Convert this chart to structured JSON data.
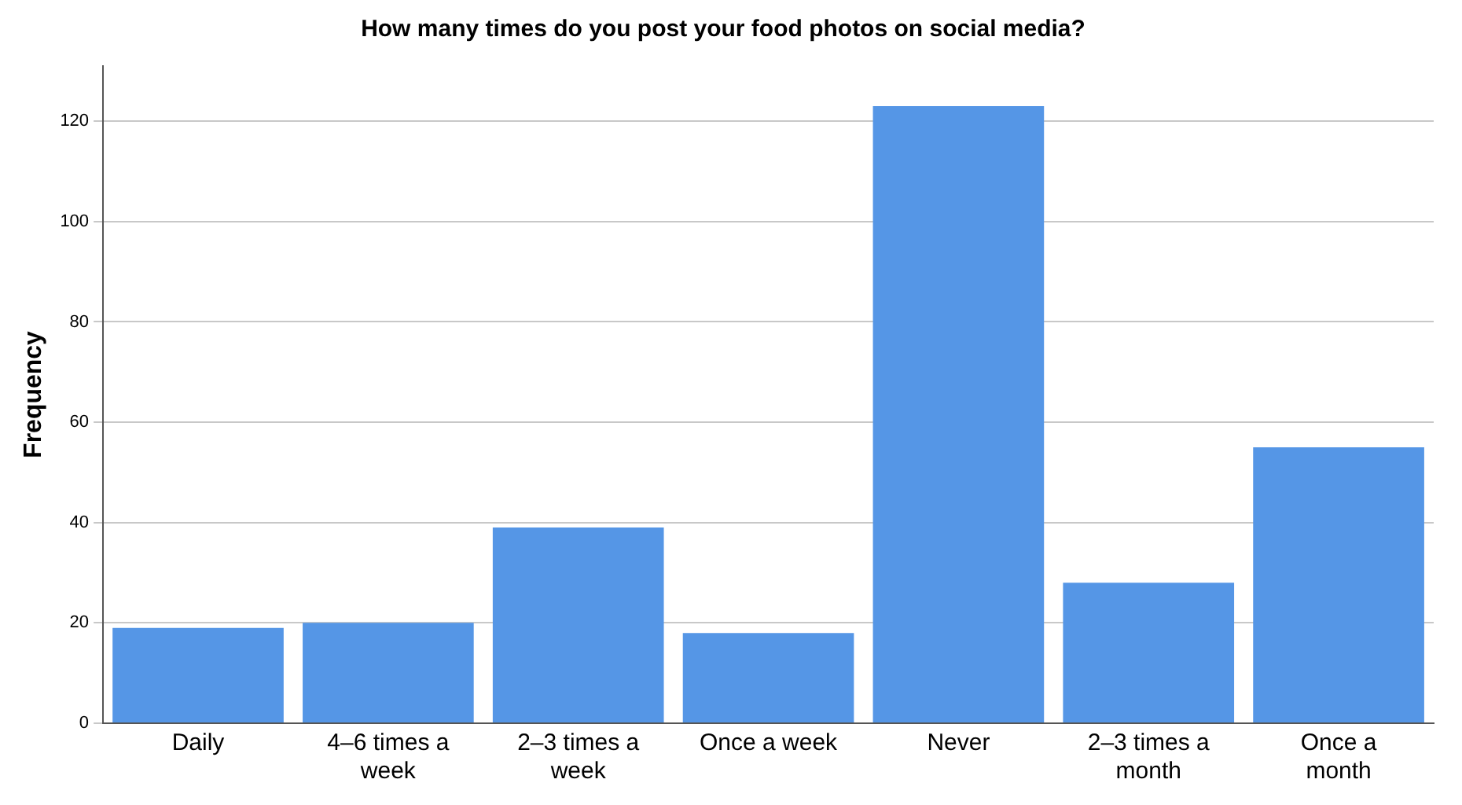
{
  "chart_data": {
    "type": "bar",
    "title": "How many times do you post your food photos on social media?",
    "ylabel": "Frequency",
    "categories": [
      "Daily",
      "4–6 times a week",
      "2–3 times a week",
      "Once a week",
      "Never",
      "2–3 times a month",
      "Once a month"
    ],
    "values": [
      19,
      20,
      39,
      18,
      123,
      28,
      55
    ],
    "color": "#5596e6",
    "ylim": [
      0,
      131
    ],
    "yticks": [
      0,
      20,
      40,
      60,
      80,
      100,
      120
    ],
    "grid": "y",
    "legend": false
  }
}
